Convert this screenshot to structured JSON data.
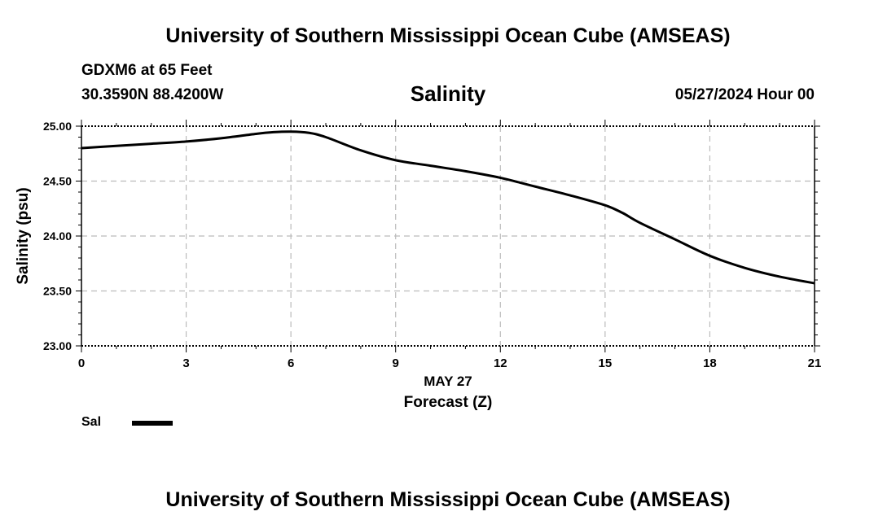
{
  "header": {
    "title": "University of Southern Mississippi Ocean Cube (AMSEAS)",
    "station": "GDXM6 at 65 Feet",
    "coords": "30.3590N  88.4200W",
    "datetime": "05/27/2024 Hour 00"
  },
  "footer": {
    "title": "University of Southern Mississippi Ocean Cube (AMSEAS)"
  },
  "legend": {
    "label": "Sal",
    "color": "#000000"
  },
  "chart_data": {
    "type": "line",
    "title": "Salinity",
    "ylabel": "Salinity (psu)",
    "xlabel": "Forecast (Z)",
    "xsublabel": "MAY 27",
    "xlim": [
      0,
      21
    ],
    "ylim": [
      23.0,
      25.0
    ],
    "xticks": [
      0,
      3,
      6,
      9,
      12,
      15,
      18,
      21
    ],
    "yticks": [
      23.0,
      23.5,
      24.0,
      24.5,
      25.0
    ],
    "ytick_labels": [
      "23.00",
      "23.50",
      "24.00",
      "24.50",
      "25.00"
    ],
    "grid": true,
    "series": [
      {
        "name": "Sal",
        "color": "#000000",
        "x": [
          0,
          1,
          2,
          3,
          4,
          5,
          5.5,
          6,
          6.5,
          7,
          8,
          9,
          10,
          11,
          12,
          13,
          14,
          15,
          15.5,
          16,
          17,
          18,
          19,
          20,
          21
        ],
        "y": [
          24.8,
          24.82,
          24.84,
          24.86,
          24.89,
          24.93,
          24.945,
          24.95,
          24.94,
          24.9,
          24.78,
          24.69,
          24.64,
          24.59,
          24.53,
          24.45,
          24.37,
          24.28,
          24.21,
          24.12,
          23.97,
          23.82,
          23.71,
          23.63,
          23.57
        ]
      }
    ]
  }
}
